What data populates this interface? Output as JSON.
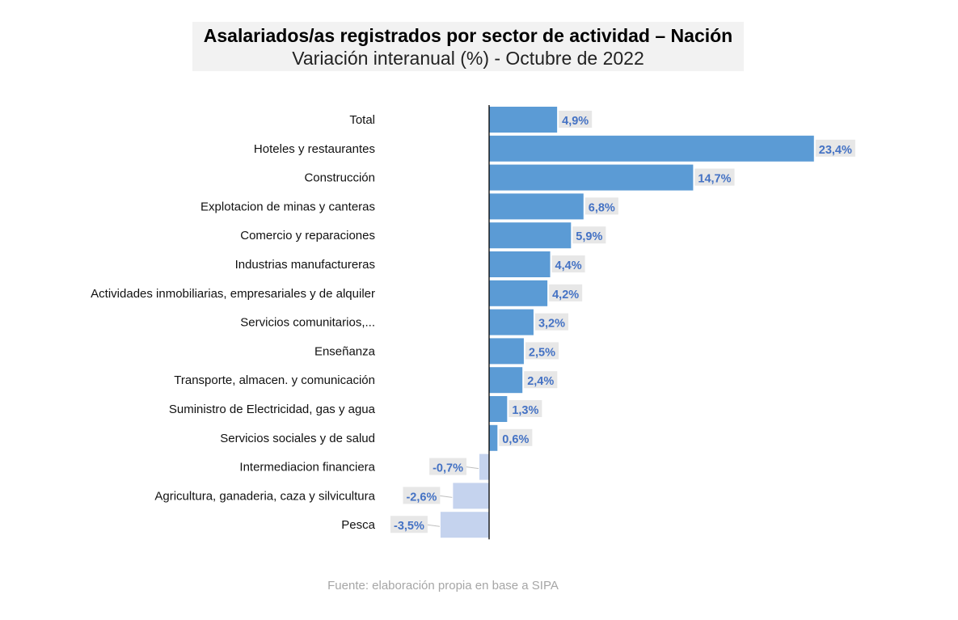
{
  "title": "Asalariados/as registrados por sector de actividad – Nación",
  "subtitle": "Variación interanual (%) - Octubre de 2022",
  "source": "Fuente: elaboración propia en base a SIPA",
  "colors": {
    "positive": "#5b9bd5",
    "negative": "#c5d3ee",
    "label_text": "#4472c4",
    "label_bg": "#e7e7e7"
  },
  "chart_data": {
    "type": "bar",
    "orientation": "horizontal",
    "title": "Asalariados/as registrados por sector de actividad – Nación",
    "subtitle": "Variación interanual (%) - Octubre de 2022",
    "categories": [
      "Total",
      "Hoteles y restaurantes",
      "Construcción",
      "Explotacion de minas y canteras",
      "Comercio y reparaciones",
      "Industrias manufactureras",
      "Actividades inmobiliarias, empresariales y de alquiler",
      "Servicios comunitarios,...",
      "Enseñanza",
      "Transporte, almacen. y comunicación",
      "Suministro de Electricidad, gas y agua",
      "Servicios sociales y de salud",
      "Intermediacion financiera",
      "Agricultura, ganaderia, caza y silvicultura",
      "Pesca"
    ],
    "values": [
      4.9,
      23.4,
      14.7,
      6.8,
      5.9,
      4.4,
      4.2,
      3.2,
      2.5,
      2.4,
      1.3,
      0.6,
      -0.7,
      -2.6,
      -3.5
    ],
    "value_labels": [
      "4,9%",
      "23,4%",
      "14,7%",
      "6,8%",
      "5,9%",
      "4,4%",
      "4,2%",
      "3,2%",
      "2,5%",
      "2,4%",
      "1,3%",
      "0,6%",
      "-0,7%",
      "-2,6%",
      "-3,5%"
    ],
    "xlim": [
      -3.5,
      23.4
    ],
    "grid": false,
    "legend": "none"
  }
}
